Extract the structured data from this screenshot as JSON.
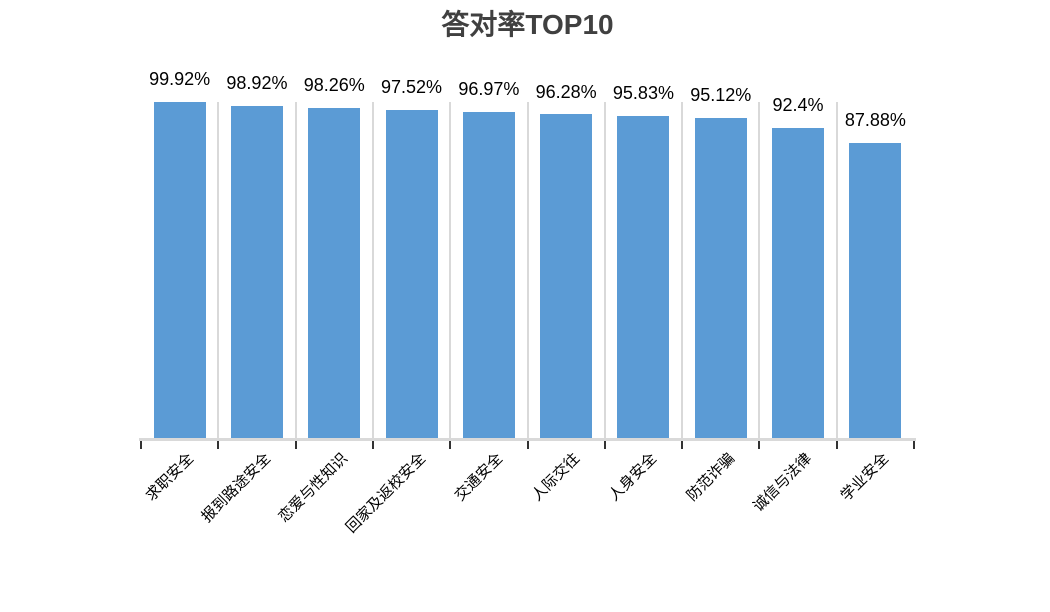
{
  "chart_data": {
    "type": "bar",
    "title": "答对率TOP10",
    "categories": [
      "求职安全",
      "报到路途安全",
      "恋爱与性知识",
      "回家及返校安全",
      "交通安全",
      "人际交往",
      "人身安全",
      "防范诈骗",
      "诚信与法律",
      "学业安全"
    ],
    "values": [
      99.92,
      98.92,
      98.26,
      97.52,
      96.97,
      96.28,
      95.83,
      95.12,
      92.4,
      87.88
    ],
    "labels": [
      "99.92%",
      "98.92%",
      "98.26%",
      "97.52%",
      "96.97%",
      "96.28%",
      "95.83%",
      "95.12%",
      "92.4%",
      "87.88%"
    ],
    "xlabel": "",
    "ylabel": "",
    "ylim": [
      0,
      100
    ],
    "grid": true,
    "legend_position": "none",
    "colors": {
      "bar": "#5B9BD5",
      "gridline": "#D9D9D9",
      "axis_line": "#D9D9D9",
      "tick": "#333333",
      "title": "#404040",
      "value_label": "#000000",
      "category_label": "#000000"
    }
  }
}
